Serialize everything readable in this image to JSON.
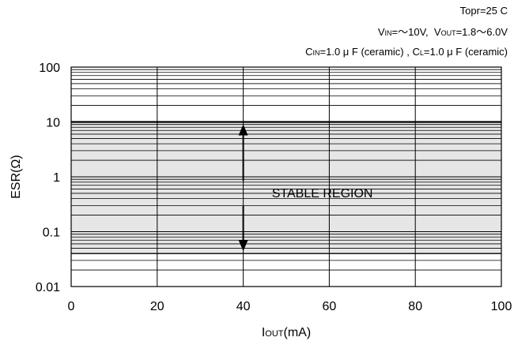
{
  "chart_data": {
    "type": "area",
    "conditions": {
      "line1": "Topr=25 C",
      "vin_prefix": "V",
      "vin_sub": "IN",
      "vin_text": "=～10V,",
      "vout_prefix": "V",
      "vout_sub": "OUT",
      "vout_text": "=1.8～6.0V",
      "cin_prefix": "C",
      "cin_sub": "IN",
      "cin_text": "=1.0 μ F (ceramic) ,",
      "cl_prefix": "C",
      "cl_sub": "L",
      "cl_text": "=1.0 μ F (ceramic)"
    },
    "ylabel": "ESR(Ω)",
    "xlabel_prefix": "I",
    "xlabel_sub": "OUT",
    "xlabel_suffix": "(mA)",
    "x_ticks": [
      "0",
      "20",
      "40",
      "60",
      "80",
      "100"
    ],
    "y_ticks": [
      "100",
      "10",
      "1",
      "0.1",
      "0.01"
    ],
    "xlim": [
      0,
      100
    ],
    "ylim": [
      0.01,
      100
    ],
    "y_scale": "log",
    "grid": true,
    "stable_region": {
      "label": "STABLE REGION",
      "x_range": [
        0,
        100
      ],
      "esr_min": 0.04,
      "esr_max": 10
    },
    "arrow_x": 40,
    "colors": {
      "region_fill": "#e6e6e6",
      "grid": "#000000",
      "text": "#000000"
    }
  }
}
